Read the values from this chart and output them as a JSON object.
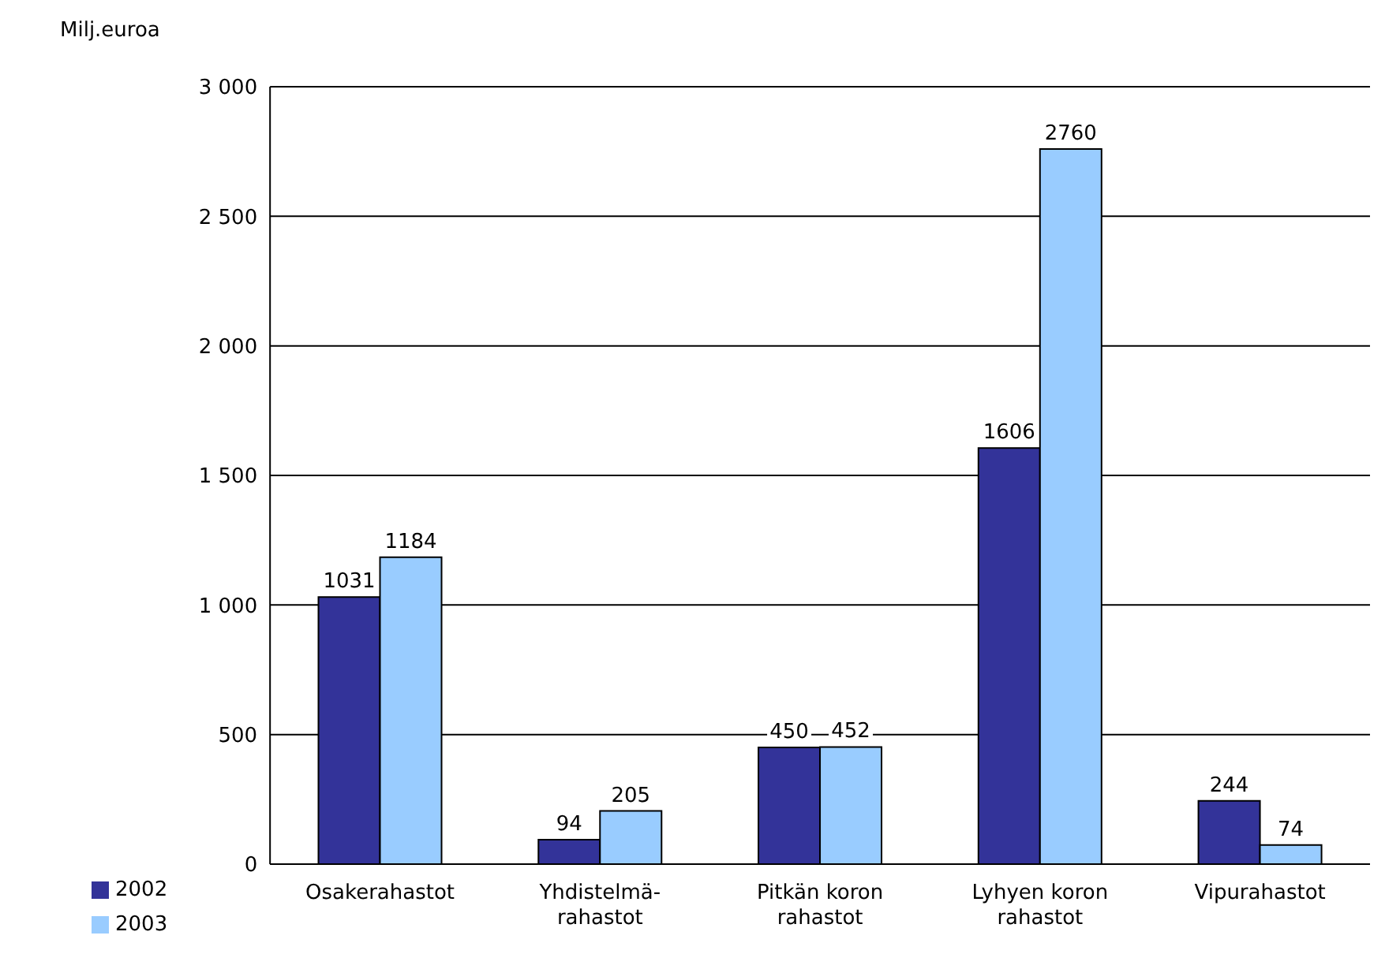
{
  "chart_data": {
    "type": "bar",
    "ylabel": "Milj.euroa",
    "categories": [
      "Osakerahastot",
      "Yhdistelmä-\nrahastot",
      "Pitkän koron\nrahastot",
      "Lyhyen koron\nrahastot",
      "Vipurahastot"
    ],
    "series": [
      {
        "name": "2002",
        "color": "#333399",
        "values": [
          1031,
          94,
          450,
          1606,
          244
        ]
      },
      {
        "name": "2003",
        "color": "#99ccff",
        "values": [
          1184,
          205,
          452,
          2760,
          74
        ]
      }
    ],
    "ylim": [
      0,
      3000
    ],
    "yticks": [
      0,
      500,
      {
        "value": 1000,
        "label": "1 000"
      },
      {
        "value": 1500,
        "label": "1 500"
      },
      {
        "value": 2000,
        "label": "2 000"
      },
      {
        "value": 2500,
        "label": "2 500"
      },
      {
        "value": 3000,
        "label": "3 000"
      }
    ],
    "grid": "y",
    "legend": "bottom left",
    "data_labels": true
  }
}
